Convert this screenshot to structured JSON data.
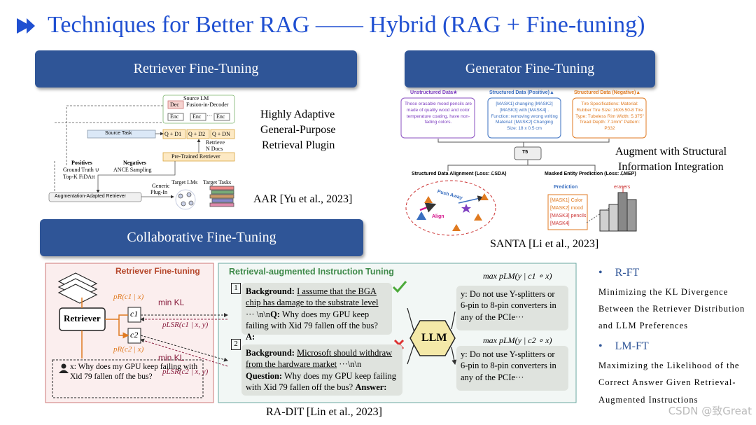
{
  "title": "Techniques for Better RAG —— Hybrid (RAG + Fine-tuning)",
  "retriever": {
    "header": "Retriever Fine-Tuning",
    "description": [
      "Highly Adaptive",
      "General-Purpose",
      "Retrieval Plugin"
    ],
    "caption": "AAR [Yu et al., 2023]",
    "figure": {
      "source_lm": "Source LM",
      "fid": "Fusion-in-Decoder",
      "dec": "Dec",
      "enc": [
        "Enc",
        "Enc",
        "Enc"
      ],
      "ellipsis": "···",
      "source_task": "Source Task",
      "docs": [
        "Q + D1",
        "Q + D2",
        "Q + DN"
      ],
      "retrieve": [
        "Retrieve",
        "N Docs"
      ],
      "retriever": "Pre-Trained Retriever",
      "positives": "Positives",
      "positives_detail": [
        "Ground Truth ∪",
        "Top-K FiDAtt"
      ],
      "negatives": "Negatives",
      "negatives_detail": "ANCE Sampling",
      "plugin": [
        "Generic",
        "Plug-In"
      ],
      "target_lms": "Target LMs",
      "target_tasks": "Target Tasks",
      "aar_box": "Augmentation-Adapted Retriever"
    }
  },
  "generator": {
    "header": "Generator Fine-Tuning",
    "description": [
      "Augment with Structural",
      "Information Integration"
    ],
    "caption": "SANTA [Li et al., 2023]",
    "figure": {
      "unstructured_title": "Unstructured Data★",
      "unstructured_text": "These erasable mood pencils are made of quality wood and color temperature coating, have non-fading colors.",
      "positive_title": "Structured Data (Positive)▲",
      "positive_text": "[MASK1] changing [MASK2] [MASK3] with [MASK4] . Function: removing wrong writing Material: [MASK2] Changing Size: 18 x 0.5 cm",
      "negative_title": "Structured Data (Negative)▲",
      "negative_text": "Tire Specifications: Material: Rubber Tire Size: 16X6.50-8 Tire Type: Tubeless Rim Width: 5.375\" Tread Depth: 7.1mm\" Pattern: P332",
      "model": "T5",
      "alignment": "Structured Data Alignment (Loss: ℒSDA)",
      "masked": "Masked Entity Prediction (Loss: ℒMEP)",
      "push_away": "Push Away",
      "align": "Align",
      "prediction": "Prediction",
      "masks": [
        "[MASK1] Color",
        "[MASK2] mood",
        "[MASK3] pencils",
        "[MASK4]"
      ],
      "erasers": "erasers"
    }
  },
  "collaborative": {
    "header": "Collaborative Fine-Tuning",
    "caption": "RA-DIT [Lin et al., 2023]",
    "figure": {
      "left_title": "Retriever Fine-tuning",
      "right_title": "Retrieval-augmented Instruction Tuning",
      "retriever": "Retriever",
      "c1": "c1",
      "c2": "c2",
      "p_r1": "pR(c1 | x)",
      "p_r2": "pR(c2 | x)",
      "min_kl": [
        "min KL",
        "min KL"
      ],
      "p_lsr1": "pLSR(c1 | x, y)",
      "p_lsr2": "pLSR(c2 | x, y)",
      "query": "x: Why does my GPU keep failing with Xid 79 fallen off the bus?",
      "llm": "LLM",
      "examples": [
        {
          "number": "1",
          "background_label": "Background:",
          "passage": "I assume that the BGA chip has damage to the substrate level",
          "passage_end": " ··· \\n\\n",
          "question_label": "Q:",
          "question": " Why does my GPU keep failing with Xid 79 fallen off the bus? ",
          "answer_label": "A:",
          "objective": "max pLM(y | c1 ∘ x)",
          "output": "y: Do not use Y-splitters or 6-pin to 8-pin converters in any of the PCIe···"
        },
        {
          "number": "2",
          "background_label": "Background:",
          "passage": "Microsoft should withdraw from the hardware market",
          "passage_end": " ···\\n\\n ",
          "question_label": "Question:",
          "question": " Why does my GPU keep failing with Xid 79 fallen off the bus? ",
          "answer_label": "Answer:",
          "objective": "max pLM(y | c2 ∘ x)",
          "output": "y: Do not use Y-splitters or 6-pin to 8-pin converters in any of the PCIe···"
        }
      ]
    }
  },
  "bullets": [
    {
      "label": "R-FT",
      "lines": [
        "Minimizing the KL Divergence",
        "Between the Retriever Distribution",
        "and LLM Preferences"
      ]
    },
    {
      "label": "LM-FT",
      "lines": [
        "Maximizing the Likelihood of the",
        "Correct Answer Given Retrieval-",
        "Augmented Instructions"
      ]
    }
  ],
  "watermark": "CSDN @致Great"
}
